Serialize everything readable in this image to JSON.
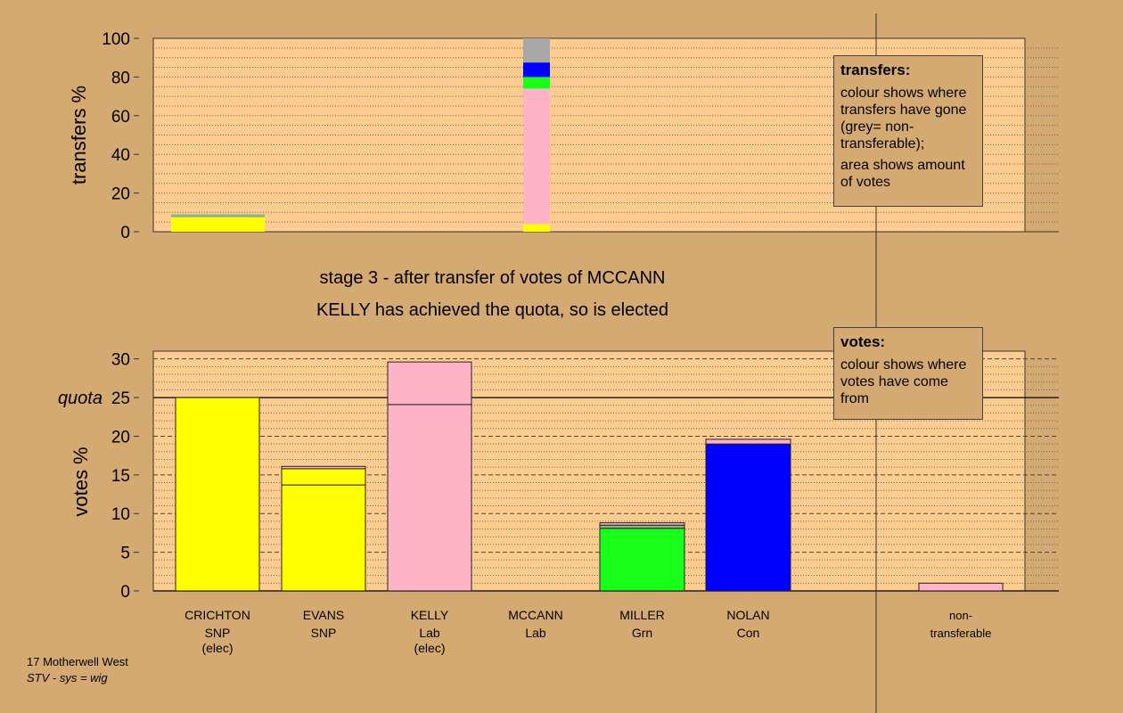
{
  "captions": {
    "stage": "stage 3 - after transfer of votes of MCCANN",
    "result": "KELLY has achieved the quota, so is elected"
  },
  "footer": {
    "line1": "17 Motherwell West",
    "line2": "STV - sys = wig"
  },
  "legends": {
    "transfers": {
      "title": "transfers:",
      "p1": "colour shows where transfers have gone (grey= non-transferable);",
      "p2": "area shows amount of votes"
    },
    "votes": {
      "title": "votes:",
      "p1": "colour shows where votes have come from"
    }
  },
  "colors": {
    "background": "#D4A972",
    "plot_bg": "#FFCC8F",
    "snp": "#FFFF00",
    "lab": "#FFB3C6",
    "grn": "#1AFF1A",
    "con": "#0000FF",
    "nontransferable": "#A8A8A8",
    "transfer_grey_green": "#88B888"
  },
  "chart_data": [
    {
      "type": "bar",
      "subtype": "stacked",
      "id": "transfers",
      "ylabel": "transfers %",
      "ylim": [
        0,
        100
      ],
      "yticks": [
        0,
        20,
        40,
        60,
        80,
        100
      ],
      "categories": [
        "CRICHTON",
        "MCCANN"
      ],
      "bars": [
        {
          "category": "CRICHTON",
          "segments": [
            {
              "color": "snp",
              "value": 7.5
            },
            {
              "color": "transfer_grey_green",
              "value": 1.5
            }
          ]
        },
        {
          "category": "MCCANN",
          "segments": [
            {
              "color": "snp",
              "value": 4
            },
            {
              "color": "lab",
              "value": 70
            },
            {
              "color": "grn",
              "value": 6
            },
            {
              "color": "con",
              "value": 7.5
            },
            {
              "color": "nontransferable",
              "value": 12.5
            }
          ]
        }
      ]
    },
    {
      "type": "bar",
      "subtype": "stacked",
      "id": "votes",
      "ylabel": "votes %",
      "ylim": [
        0,
        31
      ],
      "yticks": [
        0,
        5,
        10,
        15,
        20,
        25,
        30
      ],
      "quota": {
        "label": "quota",
        "value": 25
      },
      "categories": [
        {
          "name": "CRICHTON",
          "party": "SNP",
          "status": "(elec)"
        },
        {
          "name": "EVANS",
          "party": "SNP",
          "status": ""
        },
        {
          "name": "KELLY",
          "party": "Lab",
          "status": "(elec)"
        },
        {
          "name": "MCCANN",
          "party": "Lab",
          "status": ""
        },
        {
          "name": "MILLER",
          "party": "Grn",
          "status": ""
        },
        {
          "name": "NOLAN",
          "party": "Con",
          "status": ""
        },
        {
          "name": "non-",
          "party": "transferable",
          "status": ""
        }
      ],
      "bars": [
        {
          "segments": [
            {
              "color": "snp",
              "value": 25
            }
          ]
        },
        {
          "segments": [
            {
              "color": "snp",
              "value": 13.7
            },
            {
              "color": "snp",
              "value": 2.1
            },
            {
              "color": "lab",
              "value": 0.3
            }
          ]
        },
        {
          "segments": [
            {
              "color": "lab",
              "value": 24.1
            },
            {
              "color": "lab",
              "value": 5.5
            }
          ]
        },
        {
          "segments": []
        },
        {
          "segments": [
            {
              "color": "grn",
              "value": 8.1
            },
            {
              "color": "transfer_grey_green",
              "value": 0.4
            },
            {
              "color": "lab",
              "value": 0.3
            }
          ]
        },
        {
          "segments": [
            {
              "color": "con",
              "value": 19
            },
            {
              "color": "lab",
              "value": 0.6
            }
          ]
        },
        {
          "segments": [
            {
              "color": "lab",
              "value": 1
            }
          ]
        }
      ]
    }
  ]
}
